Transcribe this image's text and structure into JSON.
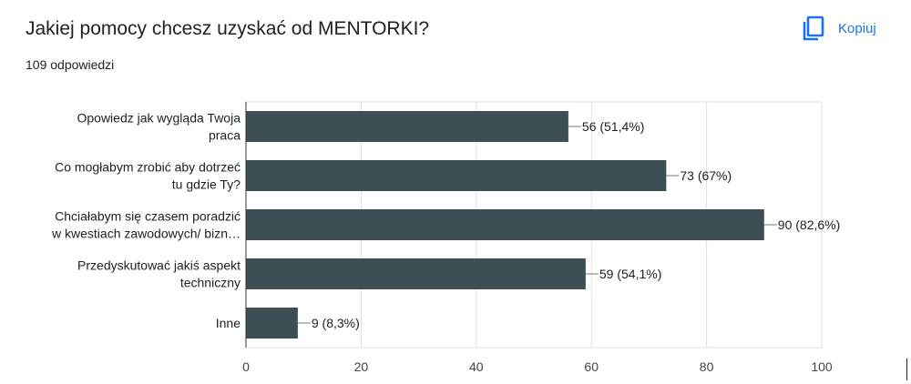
{
  "header": {
    "title": "Jakiej pomocy chcesz uzyskać od MENTORKI?",
    "responses": "109 odpowiedzi",
    "copy_label": "Kopiuj"
  },
  "colors": {
    "bar": "#3d4f55",
    "accent": "#1a73e8",
    "grid": "#e0e0e0"
  },
  "chart_data": {
    "type": "bar",
    "orientation": "horizontal",
    "categories": [
      [
        "Opowiedz jak wygląda Twoja",
        "praca"
      ],
      [
        "Co mogłabym zrobić aby dotrzeć",
        "tu gdzie Ty?"
      ],
      [
        "Chciałabym się czasem poradzić",
        "w kwestiach zawodowych/ bizn…"
      ],
      [
        "Przedyskutować jakiś aspekt",
        "techniczny"
      ],
      [
        "Inne"
      ]
    ],
    "values": [
      56,
      73,
      90,
      59,
      9
    ],
    "data_labels": [
      "56 (51,4%)",
      "73 (67%)",
      "90 (82,6%)",
      "59 (54,1%)",
      "9 (8,3%)"
    ],
    "xlim": [
      0,
      100
    ],
    "xticks": [
      0,
      20,
      40,
      60,
      80,
      100
    ],
    "grid": true,
    "legend": "none"
  }
}
